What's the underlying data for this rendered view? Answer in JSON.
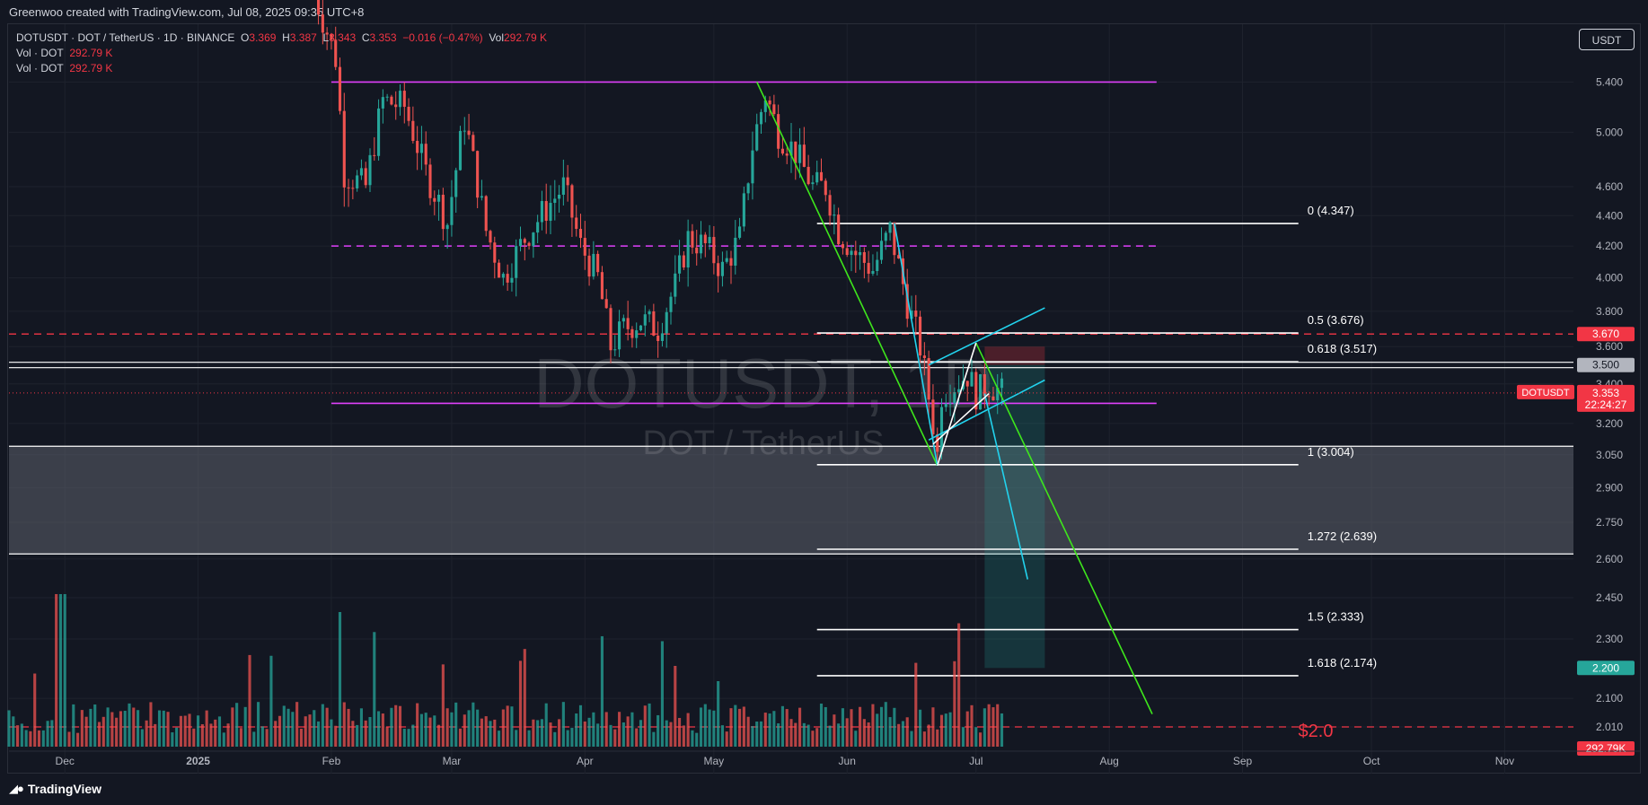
{
  "header": {
    "attribution": "Greenwoo created with TradingView.com, Jul 08, 2025 09:35 UTC+8"
  },
  "legend": {
    "symbol": "DOTUSDT · DOT / TetherUS · 1D · BINANCE",
    "o_label": "O",
    "o_value": "3.369",
    "h_label": "H",
    "h_value": "3.387",
    "l_label": "L",
    "l_value": "3.343",
    "c_label": "C",
    "c_value": "3.353",
    "change": "−0.016 (−0.47%)",
    "vol_label": "Vol",
    "vol_value": "292.79 K",
    "vol1_label": "Vol · DOT",
    "vol1_value": "292.79 K",
    "vol2_label": "Vol · DOT",
    "vol2_value": "292.79 K"
  },
  "currency_button": "USDT",
  "footer": {
    "brand": "TradingView"
  },
  "watermark": {
    "symbol": "DOTUSDT, 1D",
    "name": "DOT / TetherUS"
  },
  "colors": {
    "background": "#131722",
    "up": "#26a69a",
    "down": "#ef5350",
    "magenta": "#e040fb",
    "cyan": "#22d3ee",
    "green_trend": "#3ee61c",
    "red_dash": "#f23645",
    "zone": "#5d606b"
  },
  "chart_data": {
    "type": "candlestick",
    "scale": "log",
    "ylim": [
      1.95,
      5.9
    ],
    "y_ticks": [
      5.4,
      5.0,
      4.6,
      4.4,
      4.2,
      4.0,
      3.8,
      3.6,
      3.4,
      3.2,
      3.05,
      2.9,
      2.75,
      2.6,
      2.45,
      2.3,
      2.1,
      2.01
    ],
    "y_tick_labels": [
      "5.400",
      "5.000",
      "4.600",
      "4.400",
      "4.200",
      "4.000",
      "3.800",
      "3.600",
      "3.400",
      "3.200",
      "3.050",
      "2.900",
      "2.750",
      "2.600",
      "2.450",
      "2.300",
      "2.100",
      "2.010"
    ],
    "x_start": "2024-11-18",
    "x_end": "2025-11-17",
    "x_ticks": [
      {
        "date": "2024-12-01",
        "label": "Dec",
        "bold": false
      },
      {
        "date": "2025-01-01",
        "label": "2025",
        "bold": true
      },
      {
        "date": "2025-02-01",
        "label": "Feb",
        "bold": false
      },
      {
        "date": "2025-03-01",
        "label": "Mar",
        "bold": false
      },
      {
        "date": "2025-04-01",
        "label": "Apr",
        "bold": false
      },
      {
        "date": "2025-05-01",
        "label": "May",
        "bold": false
      },
      {
        "date": "2025-06-01",
        "label": "Jun",
        "bold": false
      },
      {
        "date": "2025-07-01",
        "label": "Jul",
        "bold": false
      },
      {
        "date": "2025-08-01",
        "label": "Aug",
        "bold": false
      },
      {
        "date": "2025-09-01",
        "label": "Sep",
        "bold": false
      },
      {
        "date": "2025-10-01",
        "label": "Oct",
        "bold": false
      },
      {
        "date": "2025-11-01",
        "label": "Nov",
        "bold": false
      }
    ],
    "price_anchors": [
      [
        "2025-01-27",
        6.3
      ],
      [
        "2025-02-02",
        5.6
      ],
      [
        "2025-02-04",
        4.7
      ],
      [
        "2025-02-09",
        4.6
      ],
      [
        "2025-02-13",
        5.25
      ],
      [
        "2025-02-18",
        5.2
      ],
      [
        "2025-02-23",
        4.7
      ],
      [
        "2025-02-28",
        4.35
      ],
      [
        "2025-03-04",
        5.1
      ],
      [
        "2025-03-09",
        4.3
      ],
      [
        "2025-03-13",
        4.0
      ],
      [
        "2025-03-18",
        4.25
      ],
      [
        "2025-03-23",
        4.45
      ],
      [
        "2025-03-27",
        4.6
      ],
      [
        "2025-03-31",
        4.2
      ],
      [
        "2025-04-04",
        4.0
      ],
      [
        "2025-04-07",
        3.6
      ],
      [
        "2025-04-10",
        3.7
      ],
      [
        "2025-04-14",
        3.75
      ],
      [
        "2025-04-18",
        3.7
      ],
      [
        "2025-04-22",
        3.95
      ],
      [
        "2025-04-25",
        4.25
      ],
      [
        "2025-04-29",
        4.2
      ],
      [
        "2025-05-03",
        4.05
      ],
      [
        "2025-05-07",
        4.25
      ],
      [
        "2025-05-10",
        4.9
      ],
      [
        "2025-05-13",
        5.3
      ],
      [
        "2025-05-16",
        5.0
      ],
      [
        "2025-05-20",
        4.85
      ],
      [
        "2025-05-24",
        4.6
      ],
      [
        "2025-05-27",
        4.6
      ],
      [
        "2025-05-30",
        4.3
      ],
      [
        "2025-06-03",
        4.15
      ],
      [
        "2025-06-07",
        4.05
      ],
      [
        "2025-06-11",
        4.3
      ],
      [
        "2025-06-15",
        3.85
      ],
      [
        "2025-06-18",
        3.6
      ],
      [
        "2025-06-21",
        3.2
      ],
      [
        "2025-06-22",
        3.05
      ],
      [
        "2025-06-23",
        3.35
      ],
      [
        "2025-06-26",
        3.4
      ],
      [
        "2025-06-29",
        3.45
      ],
      [
        "2025-07-01",
        3.35
      ],
      [
        "2025-07-04",
        3.4
      ],
      [
        "2025-07-07",
        3.353
      ]
    ],
    "last_price": 3.353,
    "last_date": "2025-07-07",
    "countdown": "22:24:27",
    "symbol_tag": "DOTUSDT",
    "volume_max_label": "292.79K",
    "horizontal_levels": [
      {
        "price": 5.4,
        "kind": "magenta_solid",
        "from": "2025-02-01",
        "to": "2025-08-12"
      },
      {
        "price": 4.2,
        "kind": "magenta_dashed",
        "from": "2025-02-01",
        "to": "2025-08-12"
      },
      {
        "price": 3.3,
        "kind": "magenta_solid",
        "from": "2025-02-01",
        "to": "2025-08-12"
      },
      {
        "price": 3.67,
        "kind": "red_dashed",
        "label": "3.670"
      },
      {
        "price": 3.5,
        "kind": "white_double",
        "label": "3.500"
      },
      {
        "price": 2.01,
        "kind": "red_dashed"
      }
    ],
    "zone": {
      "top": 3.09,
      "bottom": 2.62
    },
    "fibonacci": [
      {
        "ratio": "0",
        "price": 4.347,
        "label": "0 (4.347)"
      },
      {
        "ratio": "0.5",
        "price": 3.676,
        "label": "0.5 (3.676)"
      },
      {
        "ratio": "0.618",
        "price": 3.517,
        "label": "0.618 (3.517)"
      },
      {
        "ratio": "1",
        "price": 3.004,
        "label": "1 (3.004)"
      },
      {
        "ratio": "1.272",
        "price": 2.639,
        "label": "1.272 (2.639)"
      },
      {
        "ratio": "1.5",
        "price": 2.333,
        "label": "1.5 (2.333)"
      },
      {
        "ratio": "1.618",
        "price": 2.174,
        "label": "1.618 (2.174)"
      }
    ],
    "fib_from": "2025-05-25",
    "fib_to": "2025-09-14",
    "target_box": {
      "from": "2025-07-03",
      "to": "2025-07-17",
      "top": 3.6,
      "entry": 3.5,
      "bottom": 2.2,
      "label": "2.200"
    },
    "target_text": "$2.0",
    "trend_lines": [
      {
        "color": "green",
        "p1": [
          "2025-05-11",
          5.4
        ],
        "p2": [
          "2025-06-22",
          3.0
        ]
      },
      {
        "color": "green",
        "p1": [
          "2025-07-01",
          3.62
        ],
        "p2": [
          "2025-08-11",
          2.05
        ]
      },
      {
        "color": "cyan",
        "p1": [
          "2025-06-12",
          4.35
        ],
        "p2": [
          "2025-06-22",
          3.0
        ]
      },
      {
        "color": "cyan",
        "p1": [
          "2025-07-03",
          3.35
        ],
        "p2": [
          "2025-07-13",
          2.52
        ]
      },
      {
        "color": "cyan",
        "p1": [
          "2025-06-20",
          3.5
        ],
        "p2": [
          "2025-07-17",
          3.82
        ]
      },
      {
        "color": "cyan",
        "p1": [
          "2025-06-20",
          3.12
        ],
        "p2": [
          "2025-07-17",
          3.42
        ]
      },
      {
        "color": "white",
        "p1": [
          "2025-06-22",
          3.0
        ],
        "p2": [
          "2025-07-01",
          3.62
        ]
      },
      {
        "color": "white",
        "p1": [
          "2025-06-21",
          3.1
        ],
        "p2": [
          "2025-07-04",
          3.35
        ]
      }
    ]
  }
}
